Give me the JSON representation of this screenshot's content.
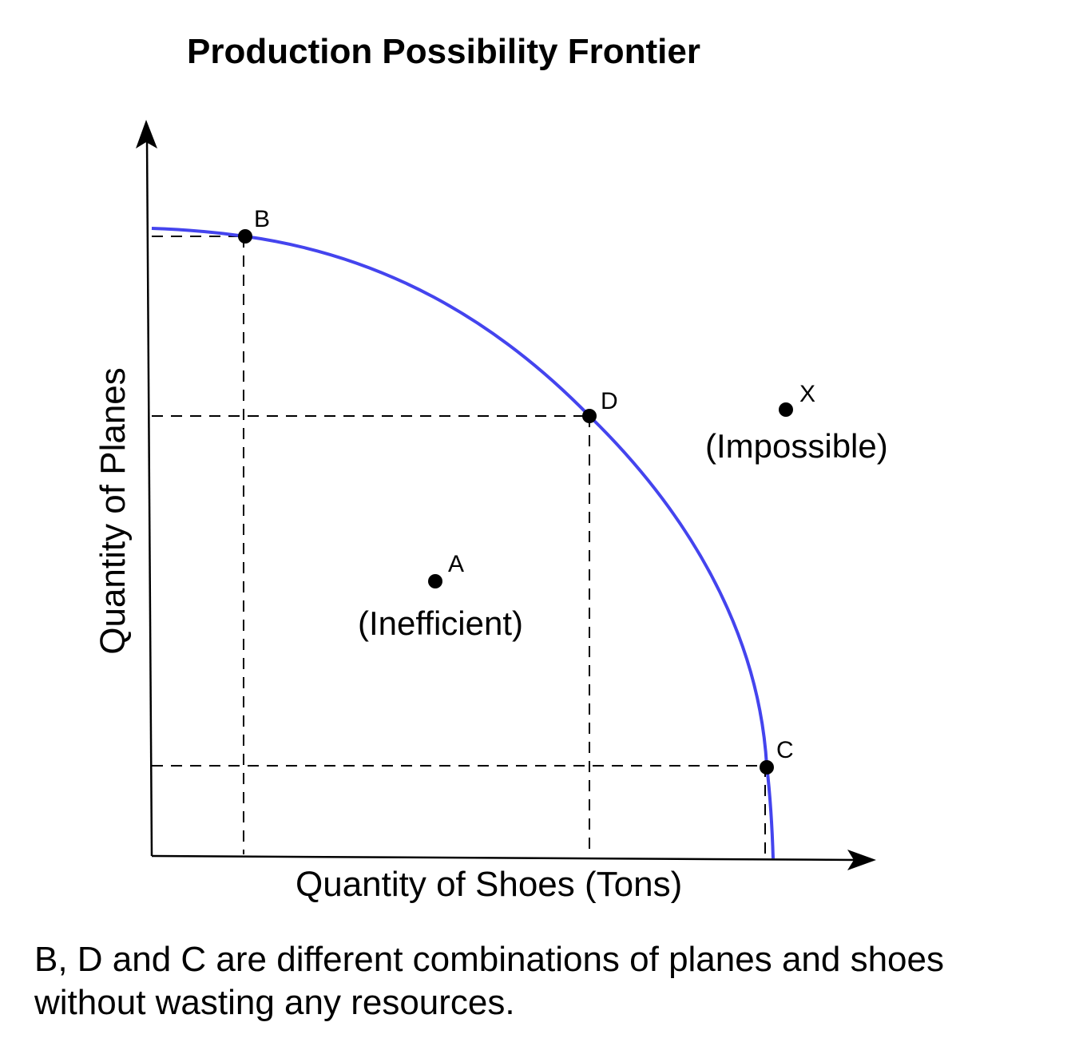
{
  "title": "Production Possibility Frontier",
  "axes": {
    "x_label": "Quantity of Shoes (Tons)",
    "y_label": "Quantity of Planes"
  },
  "points": [
    {
      "id": "B",
      "label": "B",
      "on_frontier": true
    },
    {
      "id": "D",
      "label": "D",
      "on_frontier": true
    },
    {
      "id": "C",
      "label": "C",
      "on_frontier": true
    },
    {
      "id": "A",
      "label": "A",
      "on_frontier": false
    },
    {
      "id": "X",
      "label": "X",
      "on_frontier": false
    }
  ],
  "regions": {
    "inefficient": "(Inefficient)",
    "impossible": "(Impossible)"
  },
  "caption": "B, D and C are different combinations of planes and shoes without wasting any resources.",
  "colors": {
    "frontier": "#4444ee",
    "axis": "#000000",
    "guides": "#000000",
    "points": "#000000"
  }
}
